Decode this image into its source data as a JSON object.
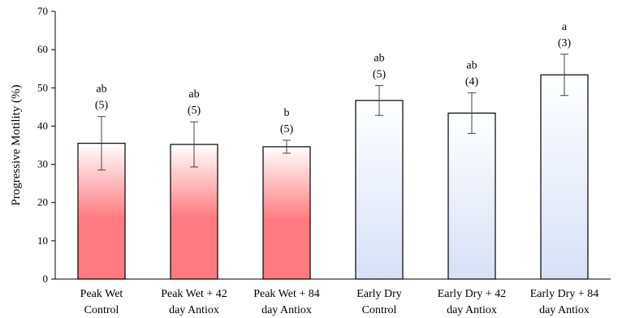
{
  "chart_data": {
    "type": "bar",
    "title": "",
    "xlabel": "",
    "ylabel": "Progressive Motility (%)",
    "ylim": [
      0,
      70
    ],
    "yticks": [
      0,
      10,
      20,
      30,
      40,
      50,
      60,
      70
    ],
    "grid": false,
    "categories": [
      [
        "Peak Wet",
        "Control"
      ],
      [
        "Peak Wet + 42",
        "day Antiox"
      ],
      [
        "Peak Wet + 84",
        "day Antiox"
      ],
      [
        "Early Dry",
        "Control"
      ],
      [
        "Early Dry + 42",
        "day Antiox"
      ],
      [
        "Early Dry + 84",
        "day Antiox"
      ]
    ],
    "values": [
      35.5,
      35.2,
      34.6,
      46.7,
      43.4,
      53.4
    ],
    "error": [
      7.0,
      5.9,
      1.7,
      3.9,
      5.3,
      5.4
    ],
    "letters": [
      "ab",
      "ab",
      "b",
      "ab",
      "ab",
      "a"
    ],
    "n": [
      "(5)",
      "(5)",
      "(5)",
      "(5)",
      "(4)",
      "(3)"
    ],
    "colors": {
      "peak_wet_bottom": "#ff7b80",
      "peak_wet_top": "#ffffff",
      "early_dry_bottom": "#d7e0f5",
      "early_dry_top": "#ffffff",
      "bar_border": "#000000"
    },
    "bar_groups": [
      "peak_wet",
      "peak_wet",
      "peak_wet",
      "early_dry",
      "early_dry",
      "early_dry"
    ]
  }
}
